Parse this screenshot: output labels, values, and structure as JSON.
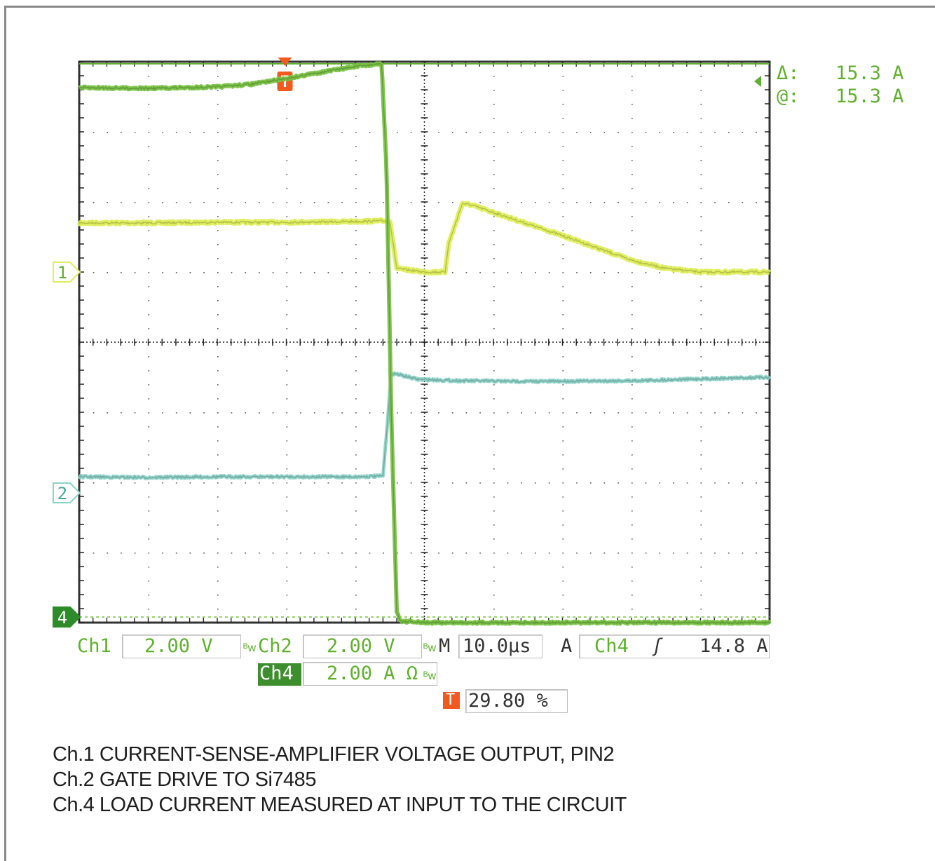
{
  "chart_data": {
    "type": "line",
    "title": "",
    "xlabel": "",
    "ylabel": "",
    "grid": true,
    "x_divisions": 10,
    "y_divisions": 8,
    "x_range_div": [
      0,
      10
    ],
    "y_range_div": [
      -4,
      4
    ],
    "series": [
      {
        "channel": "Ch1",
        "color": "#dfee5a",
        "ground_div": 1.0,
        "x": [
          0,
          1,
          2,
          3,
          4,
          4.4,
          4.5,
          4.6,
          5.0,
          5.3,
          5.35,
          5.55,
          5.7,
          6.0,
          7.0,
          8.0,
          8.5,
          9.0,
          10.0
        ],
        "y": [
          1.7,
          1.7,
          1.71,
          1.71,
          1.72,
          1.73,
          1.73,
          1.05,
          1.0,
          1.0,
          1.4,
          1.98,
          1.95,
          1.85,
          1.52,
          1.17,
          1.05,
          1.0,
          1.0
        ]
      },
      {
        "channel": "Ch2",
        "color": "#8ed3c9",
        "ground_div": -2.15,
        "x": [
          0,
          1,
          2,
          3,
          4,
          4.4,
          4.46,
          4.52,
          4.58,
          4.9,
          5.5,
          6.5,
          8.0,
          10.0
        ],
        "y": [
          -1.92,
          -1.93,
          -1.92,
          -1.92,
          -1.92,
          -1.91,
          -1.2,
          -0.45,
          -0.45,
          -0.53,
          -0.55,
          -0.56,
          -0.55,
          -0.5
        ]
      },
      {
        "channel": "Ch4",
        "color": "#79c244",
        "ground_div": -3.92,
        "x": [
          0,
          1,
          2,
          2.5,
          3,
          3.5,
          4,
          4.38,
          4.45,
          4.52,
          4.6,
          4.66,
          5,
          6,
          7,
          8,
          9,
          10
        ],
        "y": [
          3.63,
          3.62,
          3.64,
          3.68,
          3.76,
          3.85,
          3.93,
          3.97,
          2.5,
          -1.0,
          -3.85,
          -3.98,
          -4.0,
          -4.0,
          -4.0,
          -4.0,
          -4.0,
          -4.0
        ]
      }
    ],
    "cursor_div": 3.97,
    "trigger_position_div": 2.98,
    "readouts": {
      "delta_label": "Δ:",
      "delta_value": "15.3 A",
      "at_label": "@:",
      "at_value": "15.3 A",
      "ch1_label": "Ch1",
      "ch1_scale": "2.00 V",
      "ch2_label": "Ch2",
      "ch2_scale": "2.00 V",
      "ch4_label": "Ch4",
      "ch4_scale": "2.00 A Ω",
      "bw_mark": "ᴮw",
      "timebase_label": "M",
      "timebase": "10.0μs",
      "trigger_mode": "A",
      "trigger_source": "Ch4",
      "trigger_slope": "ʃ",
      "trigger_level": "14.8 A",
      "trigger_marker": "T",
      "trigger_percent": "29.80 %"
    },
    "markers": {
      "ch1": "1",
      "ch2": "2",
      "ch4": "4"
    }
  },
  "captions": [
    "Ch.1  CURRENT-SENSE-AMPLIFIER VOLTAGE OUTPUT, PIN2",
    "Ch.2  GATE DRIVE TO Si7485",
    "Ch.4  LOAD CURRENT MEASURED AT INPUT TO THE CIRCUIT"
  ],
  "colors": {
    "ch1": "#dfee5a",
    "ch2": "#8ed3c9",
    "ch4": "#79c244",
    "cursor": "#5fb02e",
    "trigger": "#f05a1e",
    "grid": "#222222",
    "text_green": "#5fb02e"
  }
}
